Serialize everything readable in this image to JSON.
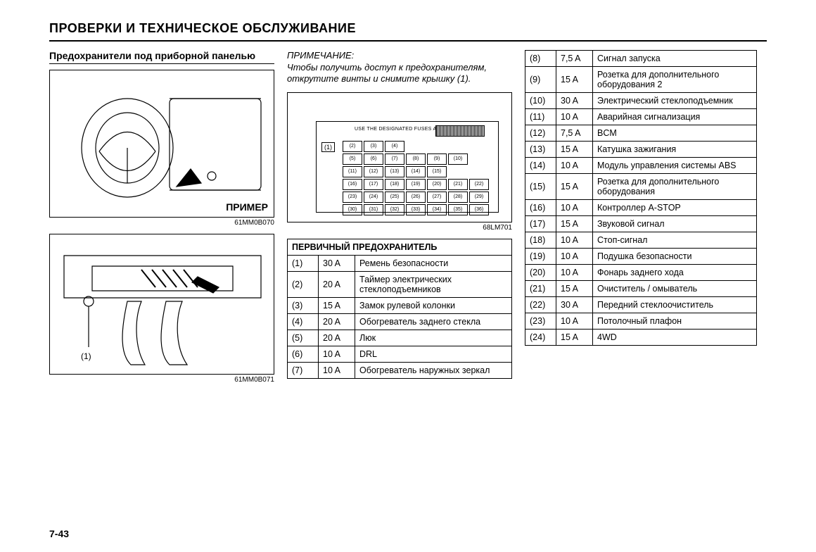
{
  "page": {
    "title": "ПРОВЕРКИ И ТЕХНИЧЕСКОЕ ОБСЛУЖИВАНИЕ",
    "number": "7-43"
  },
  "left": {
    "subtitle": "Предохранители под приборной панелью",
    "example_label": "ПРИМЕР",
    "fig1_code": "61MM0B070",
    "fig2_code": "61MM0B071",
    "fig2_ref": "(1)"
  },
  "mid": {
    "note_title": "ПРИМЕЧАНИЕ:",
    "note_body": "Чтобы получить доступ к предохрани­телям, открутите винты и снимите крышку (1).",
    "fuse_text": "USE THE DESIGNATED FUSES AND RELAYS ONLY.",
    "fuse_ref1": "(1)",
    "fuse_cells": [
      "(2)",
      "(3)",
      "(4)",
      "",
      "",
      "",
      "",
      "(5)",
      "(6)",
      "(7)",
      "(8)",
      "(9)",
      "(10)",
      "",
      "(11)",
      "(12)",
      "(13)",
      "(14)",
      "(15)",
      "",
      "",
      "(16)",
      "(17)",
      "(18)",
      "(19)",
      "(20)",
      "(21)",
      "(22)",
      "(23)",
      "(24)",
      "(25)",
      "(26)",
      "(27)",
      "(28)",
      "(29)",
      "(30)",
      "(31)",
      "(32)",
      "(33)",
      "(34)",
      "(35)",
      "(36)"
    ],
    "fig3_code": "68LM701",
    "table_header": "ПЕРВИЧНЫЙ ПРЕДОХРАНИТЕЛЬ",
    "rows": [
      {
        "n": "(1)",
        "a": "30 A",
        "d": "Ремень безопасности"
      },
      {
        "n": "(2)",
        "a": "20 A",
        "d": "Таймер электрических стеклоподъемников"
      },
      {
        "n": "(3)",
        "a": "15 A",
        "d": "Замок рулевой колонки"
      },
      {
        "n": "(4)",
        "a": "20 A",
        "d": "Обогреватель заднего стекла"
      },
      {
        "n": "(5)",
        "a": "20 A",
        "d": "Люк"
      },
      {
        "n": "(6)",
        "a": "10 A",
        "d": "DRL"
      },
      {
        "n": "(7)",
        "a": "10 A",
        "d": "Обогреватель наруж­ных зеркал"
      }
    ]
  },
  "right": {
    "rows": [
      {
        "n": "(8)",
        "a": "7,5 A",
        "d": "Сигнал запуска"
      },
      {
        "n": "(9)",
        "a": "15 A",
        "d": "Розетка для дополни­тельного оборудова­ния 2"
      },
      {
        "n": "(10)",
        "a": "30 A",
        "d": "Электрический стекло­подъемник"
      },
      {
        "n": "(11)",
        "a": "10 A",
        "d": "Аварийная сигнализа­ция"
      },
      {
        "n": "(12)",
        "a": "7,5 A",
        "d": "BCM"
      },
      {
        "n": "(13)",
        "a": "15 A",
        "d": "Катушка зажигания"
      },
      {
        "n": "(14)",
        "a": "10 A",
        "d": "Модуль управления системы ABS"
      },
      {
        "n": "(15)",
        "a": "15 A",
        "d": "Розетка для дополни­тельного оборудования"
      },
      {
        "n": "(16)",
        "a": "10 A",
        "d": "Контроллер A-STOP"
      },
      {
        "n": "(17)",
        "a": "15 A",
        "d": "Звуковой сигнал"
      },
      {
        "n": "(18)",
        "a": "10 A",
        "d": "Стоп-сигнал"
      },
      {
        "n": "(19)",
        "a": "10 A",
        "d": "Подушка безопасности"
      },
      {
        "n": "(20)",
        "a": "10 A",
        "d": "Фонарь заднего хода"
      },
      {
        "n": "(21)",
        "a": "15 A",
        "d": "Очиститель / омыватель"
      },
      {
        "n": "(22)",
        "a": "30 A",
        "d": "Передний стеклоочис­титель"
      },
      {
        "n": "(23)",
        "a": "10 A",
        "d": "Потолочный плафон"
      },
      {
        "n": "(24)",
        "a": "15 A",
        "d": "4WD"
      }
    ]
  },
  "style": {
    "border_color": "#000000",
    "bg": "#ffffff",
    "font_main": 13,
    "font_title": 18
  }
}
